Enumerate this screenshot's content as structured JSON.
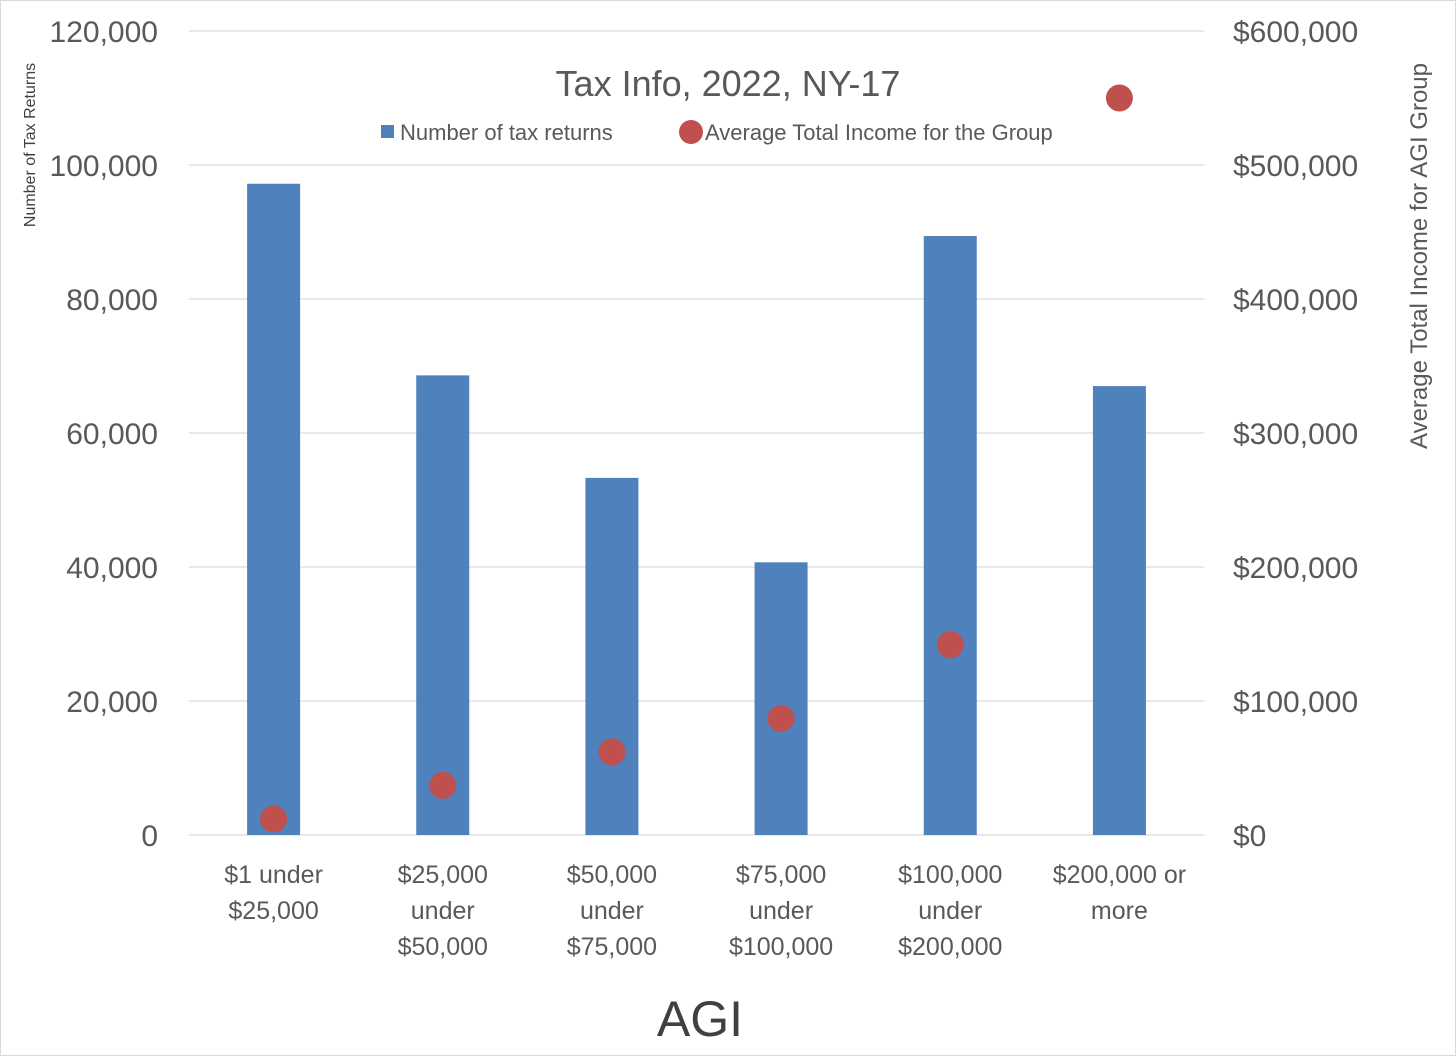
{
  "chart_data": {
    "type": "bar",
    "title": "Tax Info, 2022, NY-17",
    "xlabel": "AGI",
    "ylabel": "Number of Tax Returns",
    "ylabel_right": "Average Total Income for AGI Group",
    "categories": [
      [
        "$1 under",
        "$25,000"
      ],
      [
        "$25,000",
        "under",
        "$50,000"
      ],
      [
        "$50,000",
        "under",
        "$75,000"
      ],
      [
        "$75,000",
        "under",
        "$100,000"
      ],
      [
        "$100,000",
        "under",
        "$200,000"
      ],
      [
        "$200,000 or",
        "more"
      ]
    ],
    "ylim": [
      0,
      120000
    ],
    "ylim_right": [
      0,
      600000
    ],
    "yticks": [
      "0",
      "20,000",
      "40,000",
      "60,000",
      "80,000",
      "100,000",
      "120,000"
    ],
    "yticks_right": [
      "$0",
      "$100,000",
      "$200,000",
      "$300,000",
      "$400,000",
      "$500,000",
      "$600,000"
    ],
    "grid": true,
    "legend_position": "top",
    "series": [
      {
        "name": "Number of tax returns",
        "type": "bar",
        "axis": "left",
        "color": "#4f81bd",
        "values": [
          97200,
          68600,
          53300,
          40700,
          89400,
          67000
        ]
      },
      {
        "name": "Average Total Income for the Group",
        "type": "scatter",
        "axis": "right",
        "color": "#c0504d",
        "values": [
          12000,
          37000,
          62000,
          87000,
          142000,
          550000
        ]
      }
    ]
  }
}
